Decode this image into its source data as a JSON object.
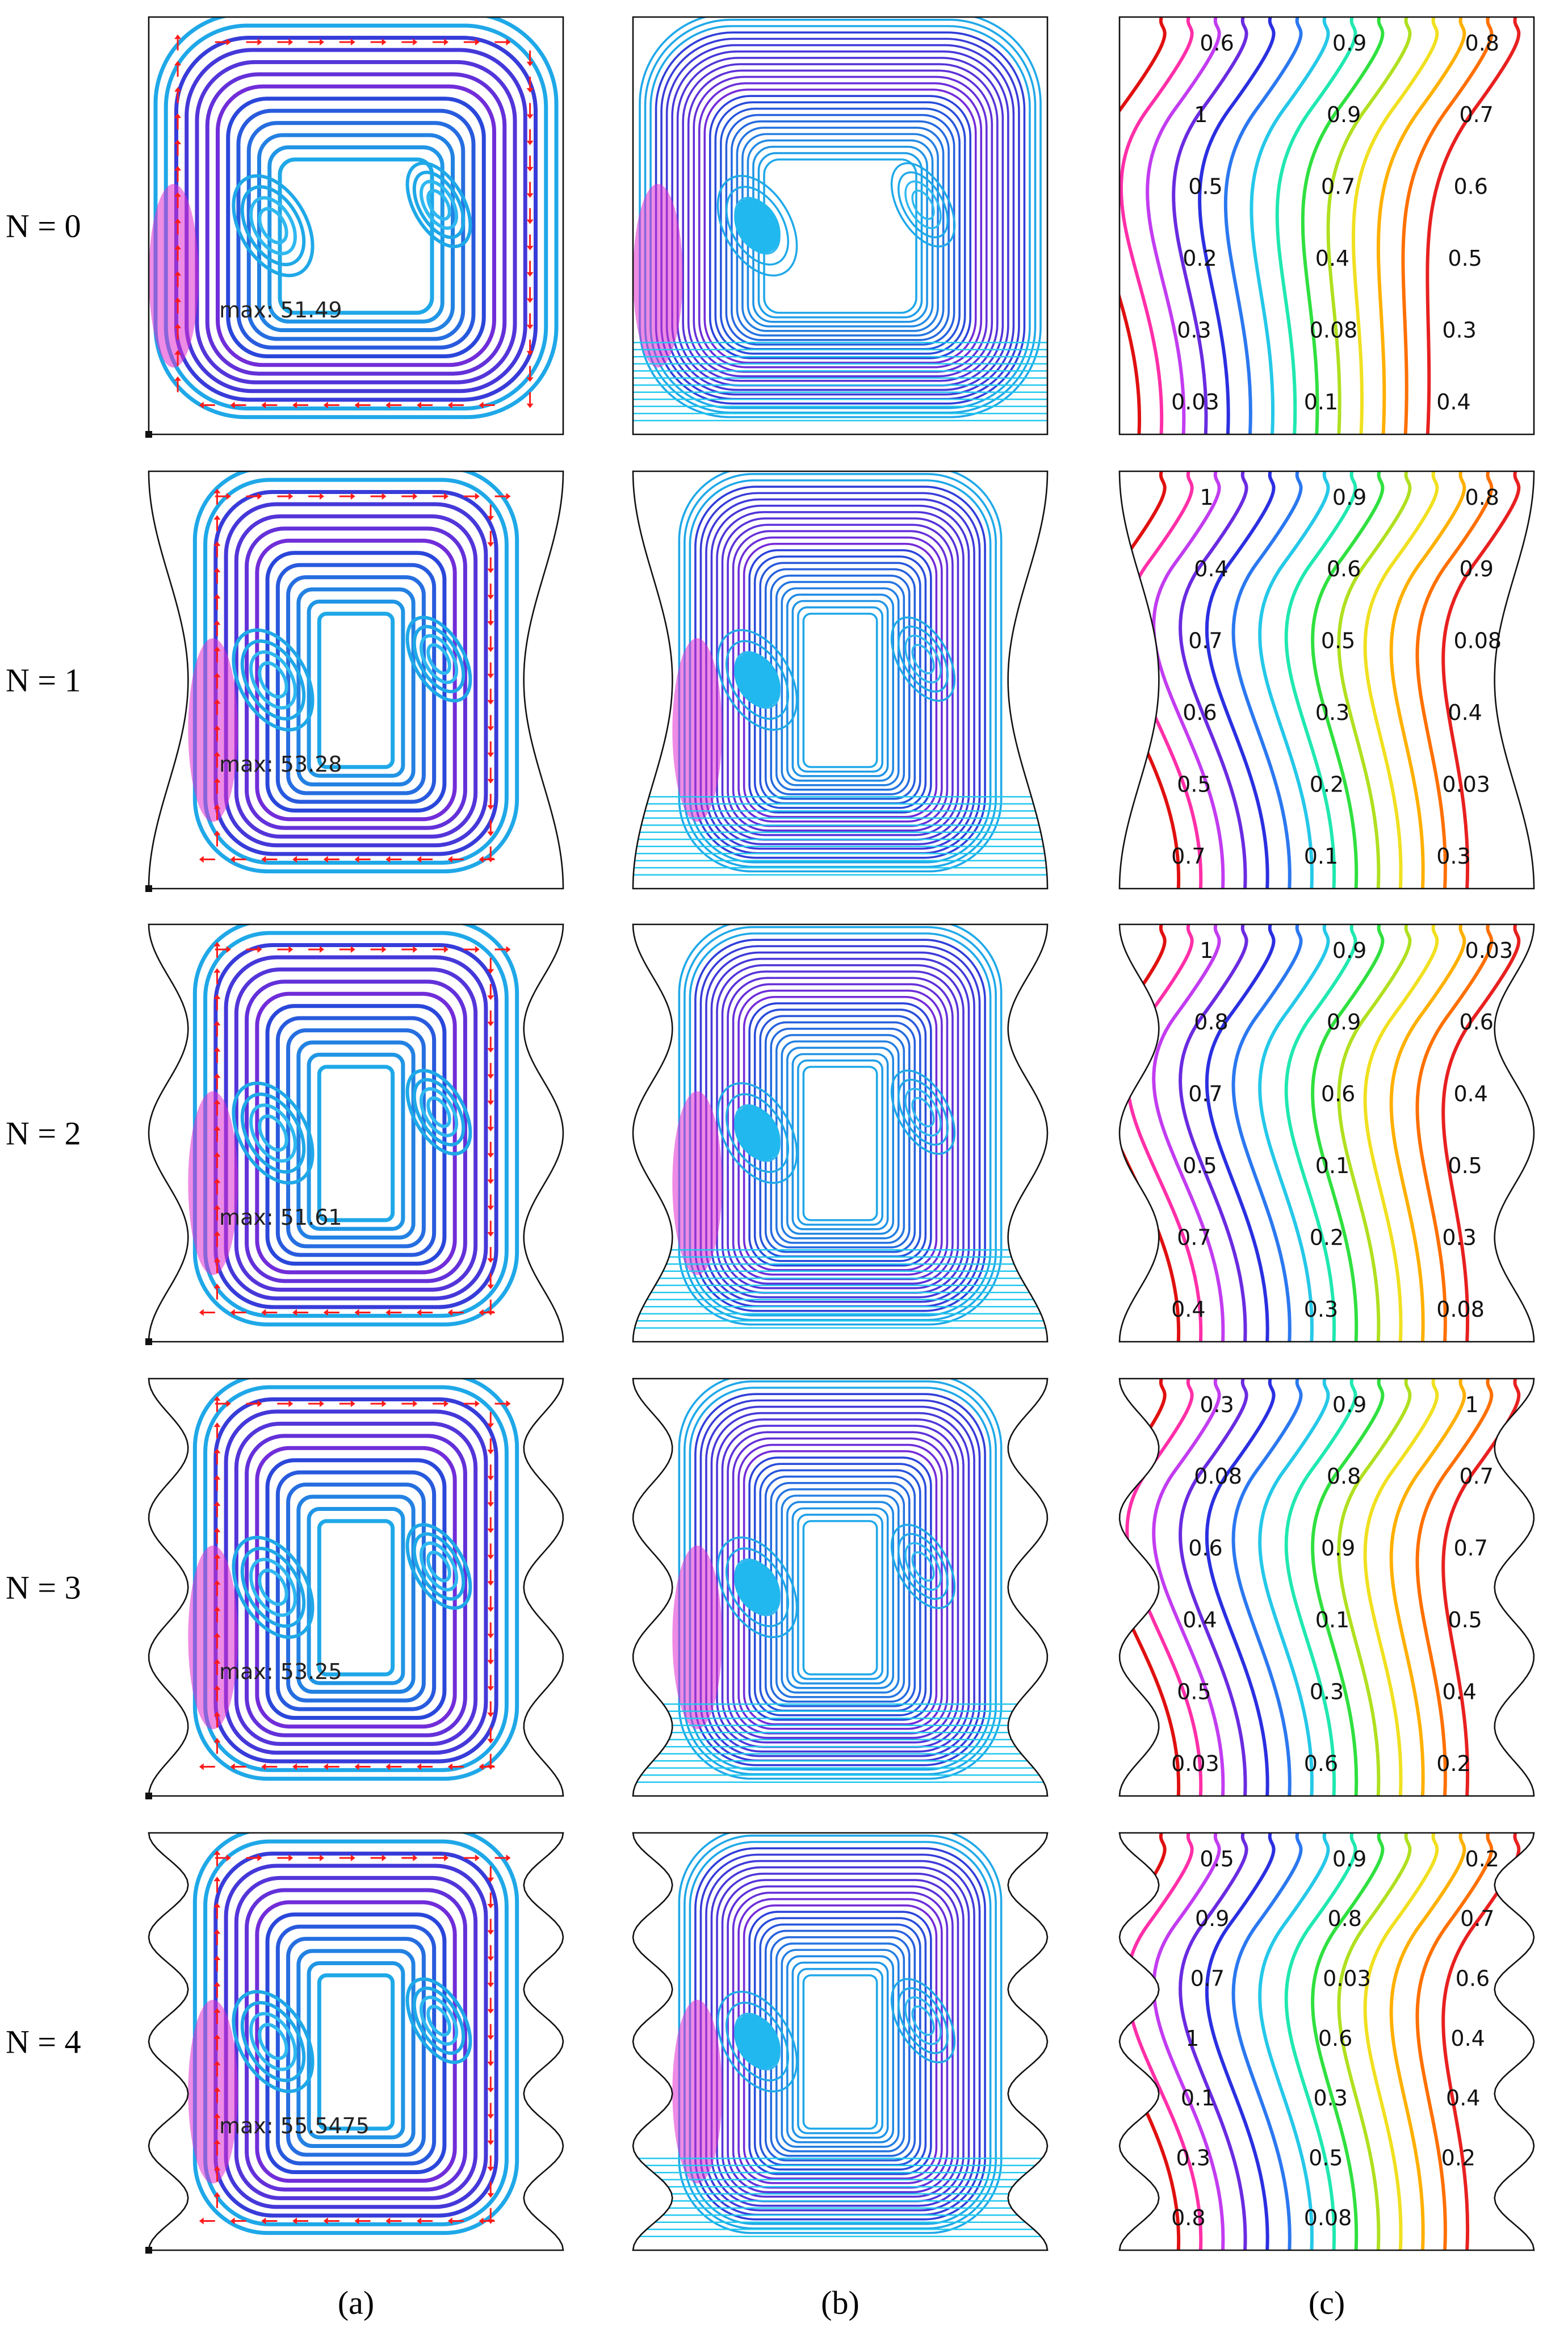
{
  "rows": [
    {
      "label": "N = 0",
      "N": 0,
      "max_label": "max: 51.49",
      "temp_labels": [
        "0.6",
        "0.9",
        "0.8",
        "1",
        "0.9",
        "0.7",
        "0.5",
        "0.7",
        "0.6",
        "0.2",
        "0.4",
        "0.5",
        "0.3",
        "0.08",
        "0.3",
        "0.03",
        "0.1",
        "0.4"
      ]
    },
    {
      "label": "N = 1",
      "N": 1,
      "max_label": "max: 53.28",
      "temp_labels": [
        "1",
        "0.9",
        "0.8",
        "0.4",
        "0.6",
        "0.9",
        "0.7",
        "0.5",
        "0.08",
        "0.6",
        "0.3",
        "0.4",
        "0.5",
        "0.2",
        "0.03",
        "0.7",
        "0.1",
        "0.3"
      ]
    },
    {
      "label": "N = 2",
      "N": 2,
      "max_label": "max: 51.61",
      "temp_labels": [
        "1",
        "0.9",
        "0.03",
        "0.8",
        "0.9",
        "0.6",
        "0.7",
        "0.6",
        "0.4",
        "0.5",
        "0.1",
        "0.5",
        "0.7",
        "0.2",
        "0.3",
        "0.4",
        "0.3",
        "0.08"
      ]
    },
    {
      "label": "N = 3",
      "N": 3,
      "max_label": "max: 53.25",
      "temp_labels": [
        "0.3",
        "0.9",
        "1",
        "0.08",
        "0.8",
        "0.7",
        "0.6",
        "0.9",
        "0.7",
        "0.4",
        "0.1",
        "0.5",
        "0.5",
        "0.3",
        "0.4",
        "0.03",
        "0.6",
        "0.2"
      ]
    },
    {
      "label": "N = 4",
      "N": 4,
      "max_label": "max: 55.5475",
      "temp_labels": [
        "0.5",
        "0.9",
        "0.2",
        "0.9",
        "0.8",
        "0.7",
        "0.7",
        "0.03",
        "0.6",
        "1",
        "0.6",
        "0.4",
        "0.1",
        "0.3",
        "0.4",
        "0.3",
        "0.5",
        "0.2",
        "0.8",
        "0.08"
      ]
    }
  ],
  "columns": [
    {
      "label": "(a)",
      "content": "streamlines with velocity vectors"
    },
    {
      "label": "(b)",
      "content": "streamlines"
    },
    {
      "label": "(c)",
      "content": "isotherms"
    }
  ],
  "colors": {
    "stream_outer": "#1fa8e8",
    "stream_mid": "#2b3fd9",
    "stream_inner": "#7a2bd9",
    "stream_hot": "#e02bd0",
    "arrow": "#ff1a1a",
    "isotherm_scale": [
      "#e01010",
      "#ff2fa8",
      "#c23cf0",
      "#6a2be0",
      "#2b2fe0",
      "#2b78f0",
      "#25c8e8",
      "#20e8b0",
      "#30e040",
      "#b0e020",
      "#f0e020",
      "#ffb000",
      "#ff7000",
      "#e82020"
    ]
  }
}
